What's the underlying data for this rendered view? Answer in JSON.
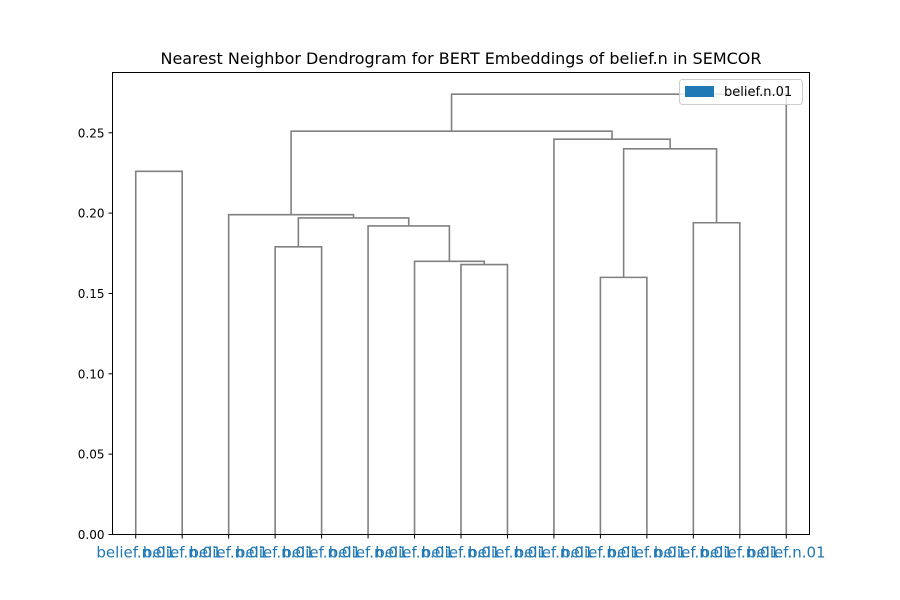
{
  "chart_data": {
    "type": "dendrogram",
    "title": "Nearest Neighbor Dendrogram for BERT Embeddings of belief.n in SEMCOR",
    "xlabel": "",
    "ylabel": "",
    "ylim": [
      0,
      0.2875
    ],
    "yticks": [
      0.0,
      0.05,
      0.1,
      0.15,
      0.2,
      0.25
    ],
    "ytick_labels": [
      "0.00",
      "0.05",
      "0.10",
      "0.15",
      "0.20",
      "0.25"
    ],
    "leaves": [
      "belief.n.01",
      "belief.n.01",
      "belief.n.01",
      "belief.n.01",
      "belief.n.01",
      "belief.n.01",
      "belief.n.01",
      "belief.n.01",
      "belief.n.01",
      "belief.n.01",
      "belief.n.01",
      "belief.n.01",
      "belief.n.01",
      "belief.n.01",
      "belief.n.01"
    ],
    "leaf_color": "#1f77b4",
    "link_color": "#808080",
    "merges": [
      {
        "left": "L10",
        "right": "L11",
        "height": 0.16
      },
      {
        "left": "L7",
        "right": "L8",
        "height": 0.168
      },
      {
        "left": "L6",
        "right": "M2",
        "height": 0.17
      },
      {
        "left": "L3",
        "right": "L4",
        "height": 0.179
      },
      {
        "left": "L5",
        "right": "M3",
        "height": 0.192
      },
      {
        "left": "L12",
        "right": "L13",
        "height": 0.194
      },
      {
        "left": "M4",
        "right": "M5",
        "height": 0.197
      },
      {
        "left": "L2",
        "right": "M7",
        "height": 0.199
      },
      {
        "left": "L0",
        "right": "L1",
        "height": 0.226
      },
      {
        "left": "M1",
        "right": "M6",
        "height": 0.24
      },
      {
        "left": "L9",
        "right": "M10",
        "height": 0.246
      },
      {
        "left": "M8",
        "right": "M11",
        "height": 0.251
      },
      {
        "left": "L14",
        "right": "M12",
        "height": 0.274
      }
    ],
    "legend": {
      "label": "belief.n.01",
      "color": "#1f77b4",
      "position": "top-right"
    },
    "grid": false
  }
}
